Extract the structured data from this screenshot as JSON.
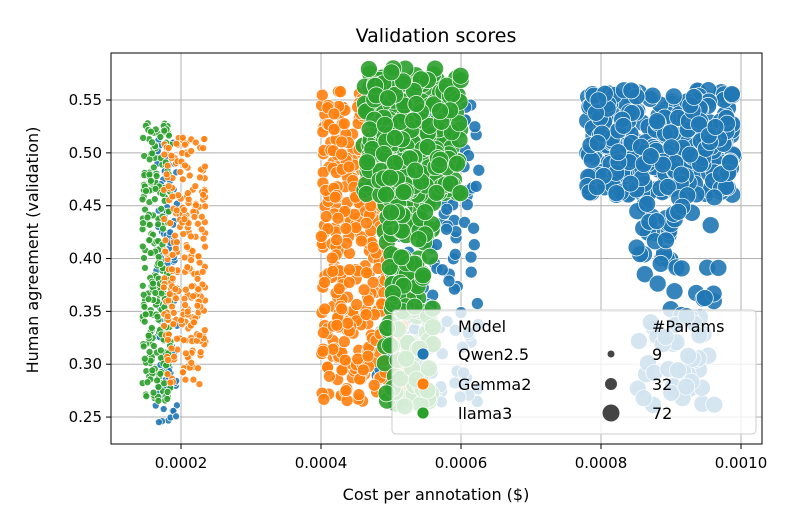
{
  "chart_data": {
    "type": "scatter",
    "title": "Validation scores",
    "xlabel": "Cost per annotation ($)",
    "ylabel": "Human agreement (validation)",
    "xlim": [
      0.0001,
      0.00103
    ],
    "ylim": [
      0.2245,
      0.5945
    ],
    "xticks": [
      0.0002,
      0.0004,
      0.0006,
      0.0008,
      0.001
    ],
    "xtick_labels": [
      "0.0002",
      "0.0004",
      "0.0006",
      "0.0008",
      "0.0010"
    ],
    "yticks": [
      0.25,
      0.3,
      0.35,
      0.4,
      0.45,
      0.5,
      0.55
    ],
    "ytick_labels": [
      "0.25",
      "0.30",
      "0.35",
      "0.40",
      "0.45",
      "0.50",
      "0.55"
    ],
    "grid": true,
    "legend": {
      "placement": "lower-right",
      "hue_title": "Model",
      "size_title": "#Params",
      "hue_entries": [
        {
          "label": "Qwen2.5",
          "color": "#1f77b4"
        },
        {
          "label": "Gemma2",
          "color": "#ff7f0e"
        },
        {
          "label": "llama3",
          "color": "#2ca02c"
        }
      ],
      "size_entries": [
        {
          "label": "9",
          "params": 9
        },
        {
          "label": "32",
          "params": 32
        },
        {
          "label": "72",
          "params": 72
        }
      ]
    },
    "series": [
      {
        "name": "Qwen2.5",
        "color": "#1f77b4",
        "clusters": [
          {
            "params": 9,
            "x_range": [
              0.000163,
              0.000195
            ],
            "y_range": [
              0.245,
              0.515
            ],
            "count": 130
          },
          {
            "params": 32,
            "x_range": [
              0.00048,
              0.00063
            ],
            "y_range": [
              0.26,
              0.55
            ],
            "count": 160
          },
          {
            "params": 72,
            "x_range": [
              0.00078,
              0.00099
            ],
            "y_range": [
              0.46,
              0.56
            ],
            "count": 340
          },
          {
            "params": 72,
            "x_range": [
              0.00085,
              0.00097
            ],
            "y_range": [
              0.26,
              0.46
            ],
            "count": 90
          }
        ]
      },
      {
        "name": "Gemma2",
        "color": "#ff7f0e",
        "clusters": [
          {
            "params": 9,
            "x_range": [
              0.000175,
              0.000235
            ],
            "y_range": [
              0.28,
              0.515
            ],
            "count": 260
          },
          {
            "params": 32,
            "x_range": [
              0.0004,
              0.00053
            ],
            "y_range": [
              0.265,
              0.56
            ],
            "count": 460
          }
        ]
      },
      {
        "name": "llama3",
        "color": "#2ca02c",
        "clusters": [
          {
            "params": 9,
            "x_range": [
              0.000145,
              0.000185
            ],
            "y_range": [
              0.265,
              0.53
            ],
            "count": 260
          },
          {
            "params": 72,
            "x_range": [
              0.00046,
              0.0006
            ],
            "y_range": [
              0.46,
              0.58
            ],
            "count": 260
          },
          {
            "params": 72,
            "x_range": [
              0.00049,
              0.00056
            ],
            "y_range": [
              0.26,
              0.46
            ],
            "count": 140
          }
        ]
      }
    ]
  }
}
